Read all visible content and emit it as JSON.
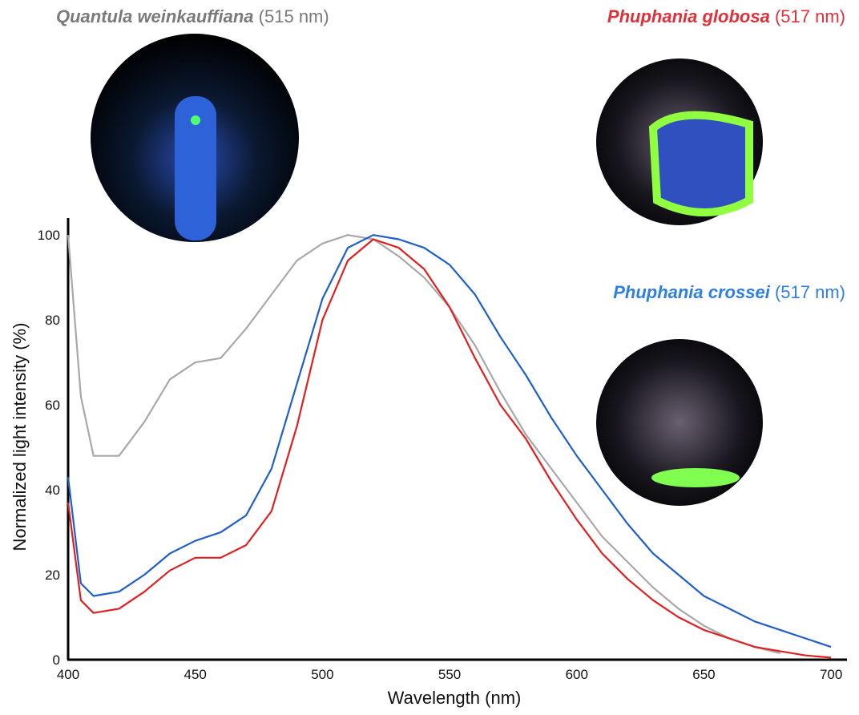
{
  "chart_data": {
    "type": "line",
    "x_label": "Wavelength (nm)",
    "y_label": "Normalized light intensity (%)",
    "xlim": [
      400,
      705
    ],
    "ylim": [
      0,
      104
    ],
    "xticks": [
      400,
      450,
      500,
      550,
      600,
      650,
      700
    ],
    "yticks": [
      0,
      20,
      40,
      60,
      80,
      100
    ],
    "x": [
      400,
      405,
      410,
      420,
      430,
      440,
      450,
      460,
      470,
      480,
      490,
      500,
      510,
      520,
      530,
      540,
      550,
      560,
      570,
      580,
      590,
      600,
      610,
      620,
      630,
      640,
      650,
      660,
      670,
      680,
      690,
      700
    ],
    "series": [
      {
        "name": "Quantula weinkauffiana",
        "annotation": "(515 nm)",
        "color": "#a8a8a8",
        "label_color": "#7a7a7a",
        "values": [
          100,
          62,
          48,
          48,
          56,
          66,
          70,
          71,
          78,
          86,
          94,
          98,
          100,
          99,
          95,
          90,
          83,
          74,
          63,
          53,
          45,
          37,
          29,
          23,
          17,
          12,
          8,
          5,
          3,
          1.5,
          null,
          null
        ]
      },
      {
        "name": "Phuphania globosa",
        "annotation": "(517 nm)",
        "color": "#e02020",
        "label_color": "#e0303a",
        "values": [
          37,
          14,
          11,
          12,
          16,
          21,
          24,
          24,
          27,
          35,
          55,
          80,
          94,
          99,
          97,
          92,
          83,
          71,
          60,
          52,
          42,
          33,
          25,
          19,
          14,
          10,
          7,
          5,
          3,
          2,
          1,
          0.5
        ]
      },
      {
        "name": "Phuphania crossei",
        "annotation": "(517 nm)",
        "color": "#1f5fc8",
        "label_color": "#2f7fe0",
        "values": [
          43,
          18,
          15,
          16,
          20,
          25,
          28,
          30,
          34,
          45,
          65,
          85,
          97,
          100,
          99,
          97,
          93,
          86,
          76,
          67,
          57,
          48,
          40,
          32,
          25,
          20,
          15,
          12,
          9,
          7,
          5,
          3
        ]
      }
    ]
  }
}
